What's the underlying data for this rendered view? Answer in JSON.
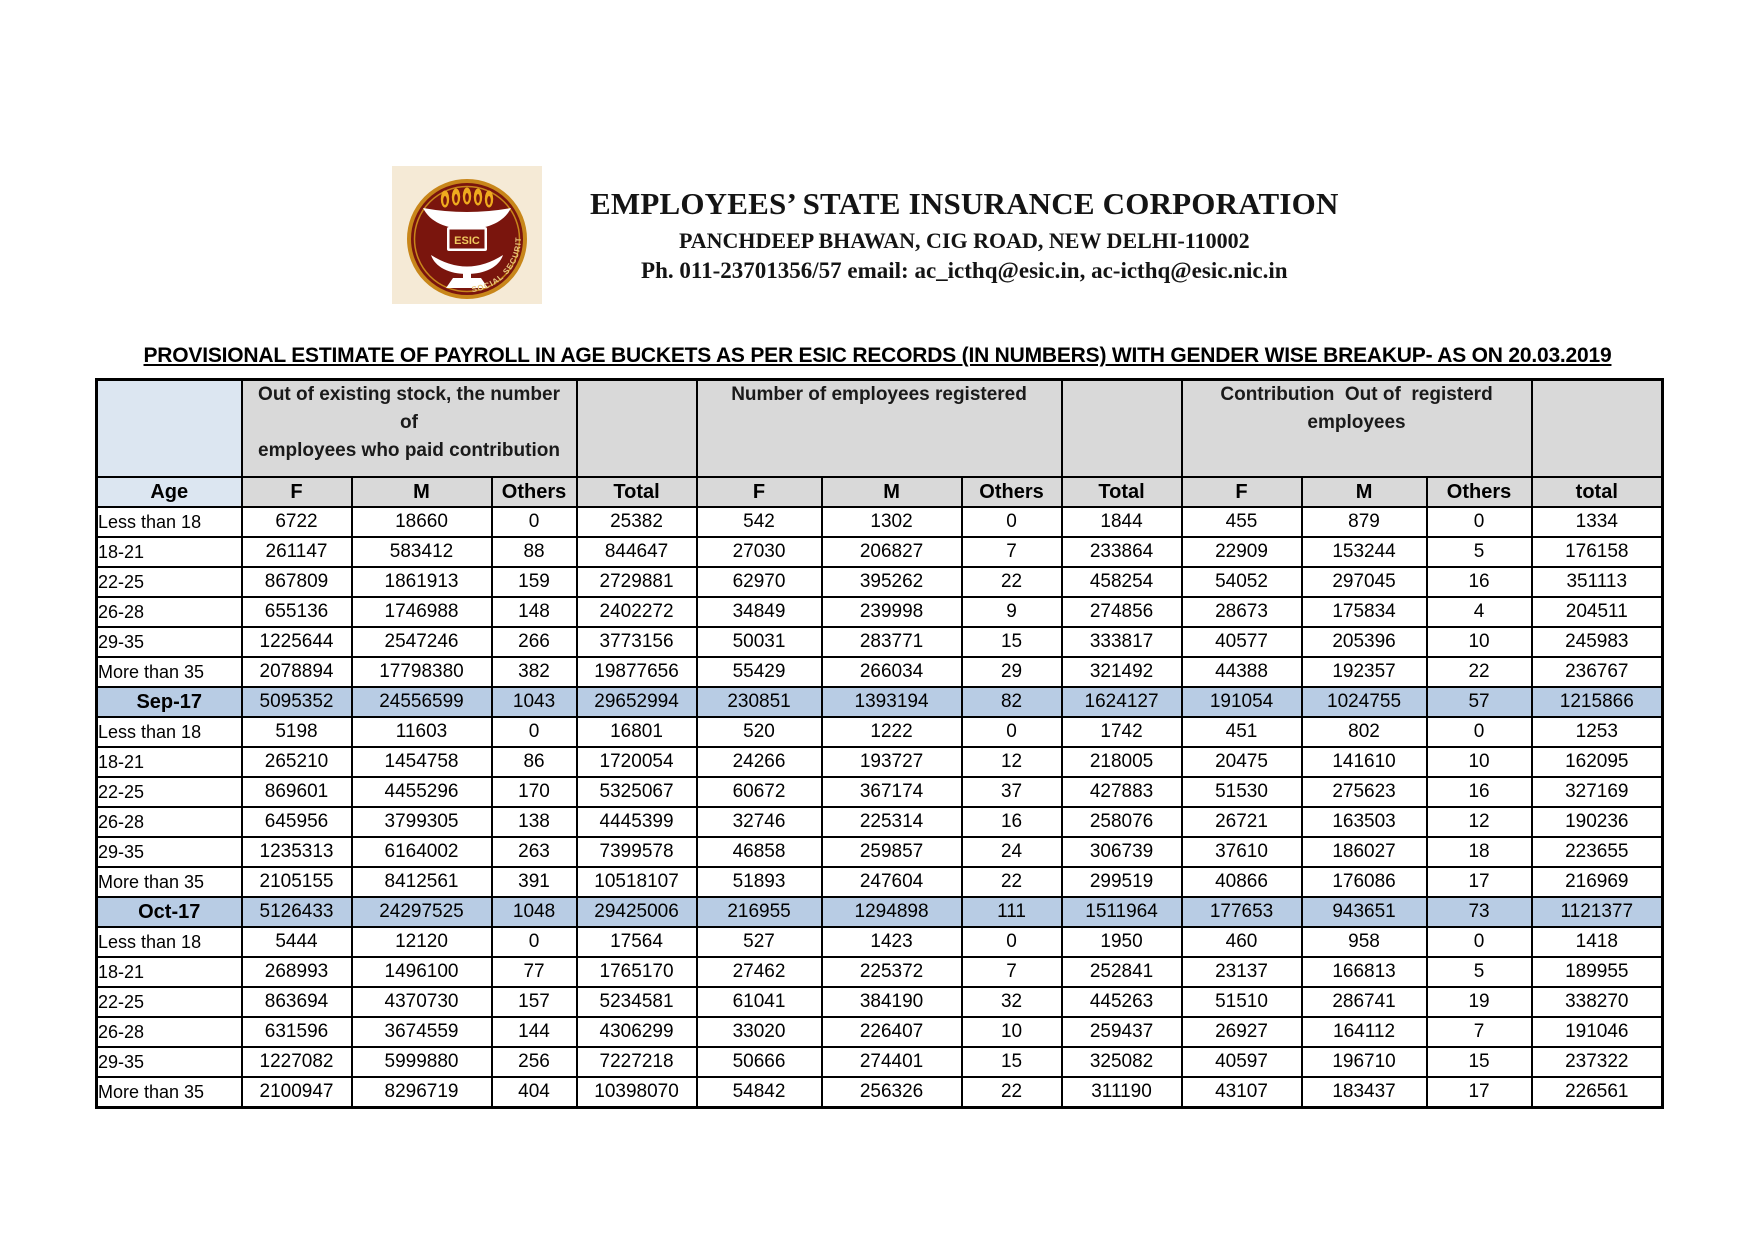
{
  "letterhead": {
    "org_name": "EMPLOYEES’ STATE INSURANCE CORPORATION",
    "address": "PANCHDEEP BHAWAN, CIG ROAD, NEW DELHI-110002",
    "contact": "Ph. 011-23701356/57 email: ac_icthq@esic.in, ac-icthq@esic.nic.in",
    "logo": {
      "text": "ESIC",
      "arc_text": "SOCIAL SECURITY"
    }
  },
  "title": "PROVISIONAL ESTIMATE OF PAYROLL IN AGE BUCKETS AS PER ESIC RECORDS (IN NUMBERS) WITH GENDER WISE BREAKUP- AS ON 20.03.2019",
  "table": {
    "group_headers": [
      {
        "label": "",
        "span": 1
      },
      {
        "label": "Out of existing stock, the number\nof\nemployees who paid contribution",
        "span": 3
      },
      {
        "label": "",
        "span": 1
      },
      {
        "label": "Number of employees registered",
        "span": 3
      },
      {
        "label": "",
        "span": 1
      },
      {
        "label": "Contribution  Out of  registerd\nemployees",
        "span": 3
      },
      {
        "label": "",
        "span": 1
      }
    ],
    "column_headers": [
      "Age",
      "F",
      "M",
      "Others",
      "Total",
      "F",
      "M",
      "Others",
      "Total",
      "F",
      "M",
      "Others",
      "total"
    ],
    "rows": [
      {
        "label": "Less than 18",
        "type": "data",
        "values": [
          "6722",
          "18660",
          "0",
          "25382",
          "542",
          "1302",
          "0",
          "1844",
          "455",
          "879",
          "0",
          "1334"
        ]
      },
      {
        "label": "18-21",
        "type": "data",
        "values": [
          "261147",
          "583412",
          "88",
          "844647",
          "27030",
          "206827",
          "7",
          "233864",
          "22909",
          "153244",
          "5",
          "176158"
        ]
      },
      {
        "label": "22-25",
        "type": "data",
        "values": [
          "867809",
          "1861913",
          "159",
          "2729881",
          "62970",
          "395262",
          "22",
          "458254",
          "54052",
          "297045",
          "16",
          "351113"
        ]
      },
      {
        "label": "26-28",
        "type": "data",
        "values": [
          "655136",
          "1746988",
          "148",
          "2402272",
          "34849",
          "239998",
          "9",
          "274856",
          "28673",
          "175834",
          "4",
          "204511"
        ]
      },
      {
        "label": "29-35",
        "type": "data",
        "values": [
          "1225644",
          "2547246",
          "266",
          "3773156",
          "50031",
          "283771",
          "15",
          "333817",
          "40577",
          "205396",
          "10",
          "245983"
        ]
      },
      {
        "label": "More than 35",
        "type": "data",
        "values": [
          "2078894",
          "17798380",
          "382",
          "19877656",
          "55429",
          "266034",
          "29",
          "321492",
          "44388",
          "192357",
          "22",
          "236767"
        ]
      },
      {
        "label": "Sep-17",
        "type": "total",
        "values": [
          "5095352",
          "24556599",
          "1043",
          "29652994",
          "230851",
          "1393194",
          "82",
          "1624127",
          "191054",
          "1024755",
          "57",
          "1215866"
        ]
      },
      {
        "label": "Less than 18",
        "type": "data",
        "values": [
          "5198",
          "11603",
          "0",
          "16801",
          "520",
          "1222",
          "0",
          "1742",
          "451",
          "802",
          "0",
          "1253"
        ]
      },
      {
        "label": "18-21",
        "type": "data",
        "values": [
          "265210",
          "1454758",
          "86",
          "1720054",
          "24266",
          "193727",
          "12",
          "218005",
          "20475",
          "141610",
          "10",
          "162095"
        ]
      },
      {
        "label": "22-25",
        "type": "data",
        "values": [
          "869601",
          "4455296",
          "170",
          "5325067",
          "60672",
          "367174",
          "37",
          "427883",
          "51530",
          "275623",
          "16",
          "327169"
        ]
      },
      {
        "label": "26-28",
        "type": "data",
        "values": [
          "645956",
          "3799305",
          "138",
          "4445399",
          "32746",
          "225314",
          "16",
          "258076",
          "26721",
          "163503",
          "12",
          "190236"
        ]
      },
      {
        "label": "29-35",
        "type": "data",
        "values": [
          "1235313",
          "6164002",
          "263",
          "7399578",
          "46858",
          "259857",
          "24",
          "306739",
          "37610",
          "186027",
          "18",
          "223655"
        ]
      },
      {
        "label": "More than 35",
        "type": "data",
        "values": [
          "2105155",
          "8412561",
          "391",
          "10518107",
          "51893",
          "247604",
          "22",
          "299519",
          "40866",
          "176086",
          "17",
          "216969"
        ]
      },
      {
        "label": "Oct-17",
        "type": "total",
        "values": [
          "5126433",
          "24297525",
          "1048",
          "29425006",
          "216955",
          "1294898",
          "111",
          "1511964",
          "177653",
          "943651",
          "73",
          "1121377"
        ]
      },
      {
        "label": "Less than 18",
        "type": "data",
        "values": [
          "5444",
          "12120",
          "0",
          "17564",
          "527",
          "1423",
          "0",
          "1950",
          "460",
          "958",
          "0",
          "1418"
        ]
      },
      {
        "label": "18-21",
        "type": "data",
        "values": [
          "268993",
          "1496100",
          "77",
          "1765170",
          "27462",
          "225372",
          "7",
          "252841",
          "23137",
          "166813",
          "5",
          "189955"
        ]
      },
      {
        "label": "22-25",
        "type": "data",
        "values": [
          "863694",
          "4370730",
          "157",
          "5234581",
          "61041",
          "384190",
          "32",
          "445263",
          "51510",
          "286741",
          "19",
          "338270"
        ]
      },
      {
        "label": "26-28",
        "type": "data",
        "values": [
          "631596",
          "3674559",
          "144",
          "4306299",
          "33020",
          "226407",
          "10",
          "259437",
          "26927",
          "164112",
          "7",
          "191046"
        ]
      },
      {
        "label": "29-35",
        "type": "data",
        "values": [
          "1227082",
          "5999880",
          "256",
          "7227218",
          "50666",
          "274401",
          "15",
          "325082",
          "40597",
          "196710",
          "15",
          "237322"
        ]
      },
      {
        "label": "More than 35",
        "type": "data",
        "values": [
          "2100947",
          "8296719",
          "404",
          "10398070",
          "54842",
          "256326",
          "22",
          "311190",
          "43107",
          "183437",
          "17",
          "226561"
        ]
      }
    ]
  },
  "colors": {
    "header_gray": "#d9d9d9",
    "age_column_blue": "#dce6f1",
    "month_total_blue": "#b8cce4",
    "logo_maroon": "#7a150d",
    "logo_gold": "#c8861a",
    "logo_cream": "#f5ead6"
  }
}
